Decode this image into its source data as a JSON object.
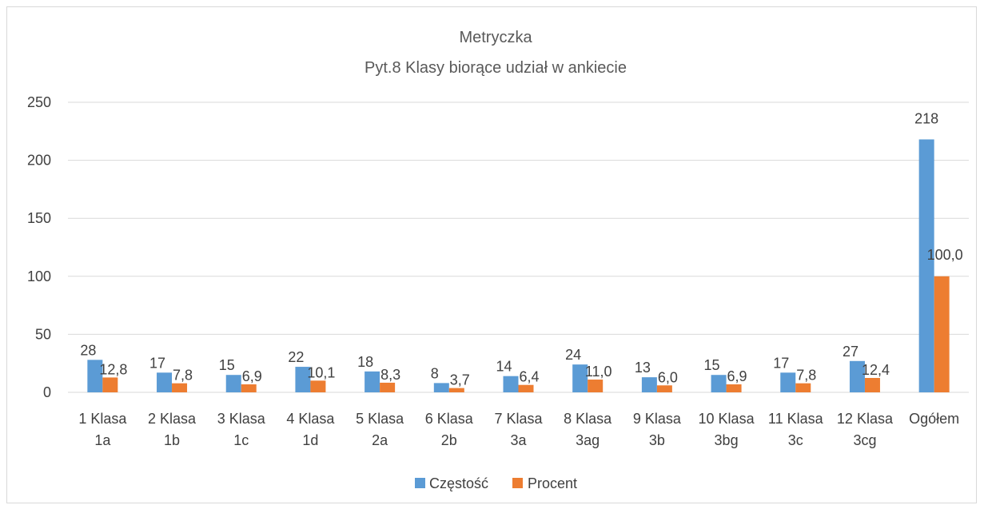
{
  "chart_data": {
    "type": "bar",
    "title": "Metryczka",
    "subtitle": "Pyt.8 Klasy biorące udział w ankiecie",
    "categories": [
      [
        "1 Klasa",
        "1a"
      ],
      [
        "2 Klasa",
        "1b"
      ],
      [
        "3 Klasa",
        "1c"
      ],
      [
        "4 Klasa",
        "1d"
      ],
      [
        "5 Klasa",
        "2a"
      ],
      [
        "6 Klasa",
        "2b"
      ],
      [
        "7 Klasa",
        "3a"
      ],
      [
        "8 Klasa",
        "3ag"
      ],
      [
        "9 Klasa",
        "3b"
      ],
      [
        "10 Klasa",
        "3bg"
      ],
      [
        "11 Klasa",
        "3c"
      ],
      [
        "12 Klasa",
        "3cg"
      ],
      [
        "Ogółem"
      ]
    ],
    "series": [
      {
        "name": "Częstość",
        "color": "#5b9bd5",
        "values": [
          28,
          17,
          15,
          22,
          18,
          8,
          14,
          24,
          13,
          15,
          17,
          27,
          218
        ],
        "labels": [
          "28",
          "17",
          "15",
          "22",
          "18",
          "8",
          "14",
          "24",
          "13",
          "15",
          "17",
          "27",
          "218"
        ]
      },
      {
        "name": "Procent",
        "color": "#ed7d31",
        "values": [
          12.8,
          7.8,
          6.9,
          10.1,
          8.3,
          3.7,
          6.4,
          11.0,
          6.0,
          6.9,
          7.8,
          12.4,
          100.0
        ],
        "labels": [
          "12,8",
          "7,8",
          "6,9",
          "10,1",
          "8,3",
          "3,7",
          "6,4",
          "11,0",
          "6,0",
          "6,9",
          "7,8",
          "12,4",
          "100,0"
        ]
      }
    ],
    "ylim": [
      0,
      250
    ],
    "yticks": [
      0,
      50,
      100,
      150,
      200,
      250
    ],
    "grid": true,
    "legend": "bottom"
  }
}
